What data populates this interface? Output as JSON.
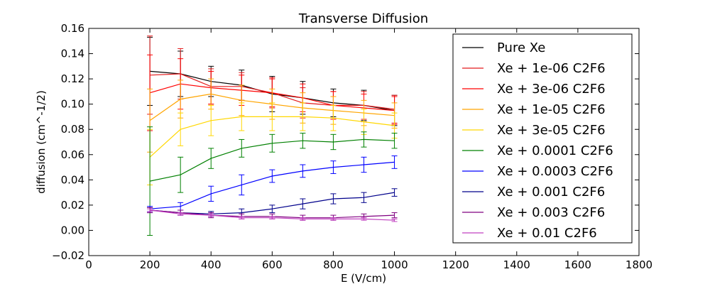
{
  "chart_data": {
    "type": "line",
    "title": "Transverse Diffusion",
    "xlabel": "E (V/cm)",
    "ylabel": "diffusion (cm^-1/2)",
    "xlim": [
      0,
      1800
    ],
    "ylim": [
      -0.02,
      0.16
    ],
    "xticks": [
      "0",
      "200",
      "400",
      "600",
      "800",
      "1000",
      "1200",
      "1400",
      "1600",
      "1800"
    ],
    "yticks": [
      "−0.02",
      "0.00",
      "0.02",
      "0.04",
      "0.06",
      "0.08",
      "0.10",
      "0.12",
      "0.14",
      "0.16"
    ],
    "grid": false,
    "legend_position": "upper-right",
    "x": [
      200,
      300,
      400,
      500,
      600,
      700,
      800,
      900,
      1000
    ],
    "series": [
      {
        "name": "Pure Xe",
        "color": "#000000",
        "values": [
          0.126,
          0.124,
          0.118,
          0.115,
          0.108,
          0.105,
          0.101,
          0.099,
          0.095
        ],
        "errors": [
          0.027,
          0.018,
          0.012,
          0.012,
          0.014,
          0.013,
          0.011,
          0.012,
          0.012
        ]
      },
      {
        "name": "Xe + 1e-06 C2F6",
        "color": "#e31a1c",
        "values": [
          0.123,
          0.124,
          0.114,
          0.114,
          0.109,
          0.101,
          0.099,
          0.099,
          0.096
        ],
        "errors": [
          0.031,
          0.02,
          0.014,
          0.011,
          0.012,
          0.012,
          0.011,
          0.011,
          0.011
        ]
      },
      {
        "name": "Xe + 3e-06 C2F6",
        "color": "#ff0000",
        "values": [
          0.109,
          0.116,
          0.113,
          0.111,
          0.109,
          0.105,
          0.099,
          0.097,
          0.095
        ],
        "errors": [
          0.03,
          0.02,
          0.013,
          0.012,
          0.011,
          0.011,
          0.011,
          0.011,
          0.011
        ]
      },
      {
        "name": "Xe + 1e-05 C2F6",
        "color": "#ffa500",
        "values": [
          0.087,
          0.104,
          0.108,
          0.103,
          0.1,
          0.097,
          0.095,
          0.093,
          0.091
        ],
        "errors": [
          0.025,
          0.015,
          0.012,
          0.012,
          0.012,
          0.012,
          0.011,
          0.01,
          0.01
        ]
      },
      {
        "name": "Xe + 3e-05 C2F6",
        "color": "#ffd700",
        "values": [
          0.058,
          0.08,
          0.087,
          0.09,
          0.09,
          0.09,
          0.089,
          0.086,
          0.083
        ],
        "errors": [
          0.022,
          0.013,
          0.012,
          0.011,
          0.011,
          0.011,
          0.01,
          0.01,
          0.01
        ]
      },
      {
        "name": "Xe + 0.0001 C2F6",
        "color": "#008000",
        "values": [
          0.039,
          0.044,
          0.057,
          0.065,
          0.069,
          0.071,
          0.07,
          0.072,
          0.071
        ],
        "errors": [
          0.043,
          0.014,
          0.008,
          0.007,
          0.007,
          0.006,
          0.006,
          0.006,
          0.006
        ]
      },
      {
        "name": "Xe + 0.0003 C2F6",
        "color": "#0000ff",
        "values": [
          0.017,
          0.019,
          0.029,
          0.036,
          0.043,
          0.047,
          0.05,
          0.052,
          0.054
        ],
        "errors": [
          0.002,
          0.003,
          0.006,
          0.008,
          0.005,
          0.005,
          0.005,
          0.006,
          0.005
        ]
      },
      {
        "name": "Xe + 0.001 C2F6",
        "color": "#00008b",
        "values": [
          0.016,
          0.014,
          0.013,
          0.014,
          0.017,
          0.021,
          0.025,
          0.026,
          0.03
        ],
        "errors": [
          0.002,
          0.002,
          0.002,
          0.003,
          0.003,
          0.004,
          0.004,
          0.004,
          0.003
        ]
      },
      {
        "name": "Xe + 0.003 C2F6",
        "color": "#800080",
        "values": [
          0.016,
          0.014,
          0.012,
          0.011,
          0.011,
          0.01,
          0.01,
          0.011,
          0.012
        ],
        "errors": [
          0.002,
          0.002,
          0.002,
          0.002,
          0.002,
          0.002,
          0.002,
          0.002,
          0.002
        ]
      },
      {
        "name": "Xe + 0.01 C2F6",
        "color": "#c040c0",
        "values": [
          0.016,
          0.013,
          0.012,
          0.01,
          0.01,
          0.009,
          0.009,
          0.009,
          0.008
        ],
        "errors": [
          0.001,
          0.001,
          0.001,
          0.001,
          0.001,
          0.001,
          0.001,
          0.001,
          0.001
        ]
      }
    ]
  }
}
